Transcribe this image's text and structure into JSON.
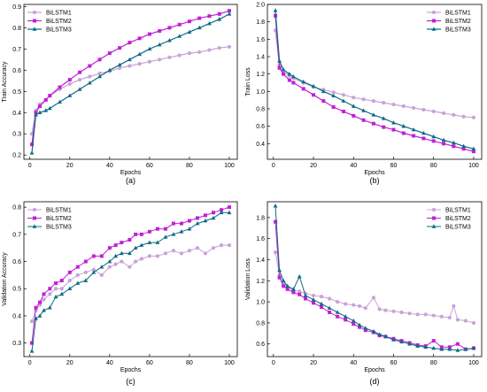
{
  "chart_data": [
    {
      "type": "line",
      "panel_label": "(a)",
      "xlabel": "Epochs",
      "ylabel": "Train Accuracy",
      "xlim": [
        -3,
        104
      ],
      "ylim": [
        0.18,
        0.91
      ],
      "xticks": [
        0,
        20,
        40,
        60,
        80,
        100
      ],
      "yticks": [
        0.2,
        0.3,
        0.4,
        0.5,
        0.6,
        0.7,
        0.8,
        0.9
      ],
      "legend_position": "top-left",
      "grid": false,
      "series": [
        {
          "name": "BiLSTM1",
          "color": "#c8a2d8",
          "marker": "circle",
          "width": 1.2,
          "x": [
            1,
            3,
            5,
            8,
            10,
            15,
            20,
            25,
            30,
            35,
            40,
            45,
            50,
            55,
            60,
            65,
            70,
            75,
            80,
            85,
            90,
            95,
            100
          ],
          "y": [
            0.3,
            0.41,
            0.44,
            0.46,
            0.48,
            0.51,
            0.535,
            0.555,
            0.57,
            0.585,
            0.595,
            0.61,
            0.62,
            0.63,
            0.64,
            0.65,
            0.66,
            0.67,
            0.68,
            0.685,
            0.695,
            0.705,
            0.71
          ]
        },
        {
          "name": "BiLSTM2",
          "color": "#c21fd6",
          "marker": "square",
          "width": 1.2,
          "x": [
            1,
            3,
            5,
            8,
            10,
            15,
            20,
            25,
            30,
            35,
            40,
            45,
            50,
            55,
            60,
            65,
            70,
            75,
            80,
            85,
            90,
            95,
            100
          ],
          "y": [
            0.25,
            0.4,
            0.43,
            0.46,
            0.48,
            0.52,
            0.555,
            0.59,
            0.62,
            0.65,
            0.68,
            0.705,
            0.73,
            0.75,
            0.77,
            0.785,
            0.8,
            0.815,
            0.83,
            0.845,
            0.855,
            0.865,
            0.88
          ]
        },
        {
          "name": "BiLSTM3",
          "color": "#0d6b84",
          "marker": "triangle",
          "width": 1.2,
          "x": [
            1,
            3,
            5,
            8,
            10,
            15,
            20,
            25,
            30,
            35,
            40,
            45,
            50,
            55,
            60,
            65,
            70,
            75,
            80,
            85,
            90,
            95,
            100
          ],
          "y": [
            0.21,
            0.39,
            0.4,
            0.41,
            0.42,
            0.45,
            0.48,
            0.51,
            0.54,
            0.57,
            0.6,
            0.625,
            0.65,
            0.675,
            0.7,
            0.72,
            0.74,
            0.76,
            0.78,
            0.8,
            0.82,
            0.84,
            0.865
          ]
        }
      ]
    },
    {
      "type": "line",
      "panel_label": "(b)",
      "xlabel": "Epochs",
      "ylabel": "Train Loss",
      "xlim": [
        -3,
        104
      ],
      "ylim": [
        0.22,
        2.0
      ],
      "xticks": [
        0,
        20,
        40,
        60,
        80,
        100
      ],
      "yticks": [
        0.4,
        0.6,
        0.8,
        1.0,
        1.2,
        1.4,
        1.6,
        1.8,
        2.0
      ],
      "legend_position": "top-right",
      "grid": false,
      "series": [
        {
          "name": "BiLSTM1",
          "color": "#c8a2d8",
          "marker": "circle",
          "width": 1.2,
          "x": [
            1,
            3,
            5,
            8,
            10,
            15,
            20,
            25,
            30,
            35,
            40,
            45,
            50,
            55,
            60,
            65,
            70,
            75,
            80,
            85,
            90,
            95,
            100
          ],
          "y": [
            1.7,
            1.3,
            1.22,
            1.18,
            1.15,
            1.1,
            1.05,
            1.02,
            0.99,
            0.96,
            0.93,
            0.91,
            0.89,
            0.87,
            0.85,
            0.83,
            0.81,
            0.79,
            0.77,
            0.75,
            0.73,
            0.71,
            0.7
          ]
        },
        {
          "name": "BiLSTM2",
          "color": "#c21fd6",
          "marker": "square",
          "width": 1.2,
          "x": [
            1,
            3,
            5,
            8,
            10,
            15,
            20,
            25,
            30,
            35,
            40,
            45,
            50,
            55,
            60,
            65,
            70,
            75,
            80,
            85,
            90,
            95,
            100
          ],
          "y": [
            1.87,
            1.27,
            1.2,
            1.13,
            1.1,
            1.03,
            0.96,
            0.89,
            0.82,
            0.77,
            0.72,
            0.67,
            0.63,
            0.59,
            0.56,
            0.52,
            0.49,
            0.46,
            0.43,
            0.4,
            0.37,
            0.34,
            0.31
          ]
        },
        {
          "name": "BiLSTM3",
          "color": "#0d6b84",
          "marker": "triangle",
          "width": 1.2,
          "x": [
            1,
            3,
            5,
            8,
            10,
            15,
            20,
            25,
            30,
            35,
            40,
            45,
            50,
            55,
            60,
            65,
            70,
            75,
            80,
            85,
            90,
            95,
            100
          ],
          "y": [
            1.93,
            1.35,
            1.25,
            1.2,
            1.17,
            1.11,
            1.06,
            1.0,
            0.95,
            0.89,
            0.83,
            0.78,
            0.73,
            0.69,
            0.64,
            0.6,
            0.56,
            0.52,
            0.48,
            0.44,
            0.41,
            0.37,
            0.34
          ]
        }
      ]
    },
    {
      "type": "line",
      "panel_label": "(c)",
      "xlabel": "Epochs",
      "ylabel": "Validation Accuracy",
      "xlim": [
        -3,
        104
      ],
      "ylim": [
        0.25,
        0.82
      ],
      "xticks": [
        0,
        20,
        40,
        60,
        80,
        100
      ],
      "yticks": [
        0.3,
        0.4,
        0.5,
        0.6,
        0.7,
        0.8
      ],
      "legend_position": "top-left",
      "grid": false,
      "series": [
        {
          "name": "BiLSTM1",
          "color": "#c8a2d8",
          "marker": "circle",
          "width": 1.0,
          "x": [
            1,
            3,
            5,
            7,
            10,
            13,
            16,
            20,
            24,
            28,
            32,
            36,
            40,
            43,
            46,
            50,
            53,
            56,
            60,
            64,
            68,
            72,
            76,
            80,
            84,
            88,
            92,
            96,
            100
          ],
          "y": [
            0.38,
            0.42,
            0.44,
            0.46,
            0.48,
            0.5,
            0.5,
            0.53,
            0.55,
            0.56,
            0.57,
            0.55,
            0.58,
            0.59,
            0.6,
            0.58,
            0.6,
            0.61,
            0.62,
            0.62,
            0.63,
            0.64,
            0.63,
            0.64,
            0.65,
            0.63,
            0.65,
            0.66,
            0.66
          ]
        },
        {
          "name": "BiLSTM2",
          "color": "#c21fd6",
          "marker": "square",
          "width": 1.0,
          "x": [
            1,
            3,
            5,
            7,
            10,
            13,
            16,
            20,
            24,
            28,
            32,
            36,
            40,
            43,
            46,
            50,
            53,
            56,
            60,
            64,
            68,
            72,
            76,
            80,
            84,
            88,
            92,
            96,
            100
          ],
          "y": [
            0.3,
            0.43,
            0.45,
            0.48,
            0.5,
            0.52,
            0.53,
            0.56,
            0.58,
            0.6,
            0.62,
            0.62,
            0.65,
            0.66,
            0.67,
            0.68,
            0.7,
            0.7,
            0.71,
            0.72,
            0.72,
            0.74,
            0.74,
            0.75,
            0.76,
            0.77,
            0.78,
            0.79,
            0.8
          ]
        },
        {
          "name": "BiLSTM3",
          "color": "#0d6b84",
          "marker": "triangle",
          "width": 1.0,
          "x": [
            1,
            3,
            5,
            7,
            10,
            13,
            16,
            20,
            24,
            28,
            32,
            36,
            40,
            43,
            46,
            50,
            53,
            56,
            60,
            64,
            68,
            72,
            76,
            80,
            84,
            88,
            92,
            96,
            100
          ],
          "y": [
            0.27,
            0.39,
            0.4,
            0.42,
            0.43,
            0.47,
            0.48,
            0.5,
            0.52,
            0.53,
            0.56,
            0.58,
            0.6,
            0.62,
            0.63,
            0.63,
            0.65,
            0.66,
            0.67,
            0.67,
            0.69,
            0.7,
            0.71,
            0.72,
            0.74,
            0.75,
            0.76,
            0.78,
            0.78
          ]
        }
      ]
    },
    {
      "type": "line",
      "panel_label": "(d)",
      "xlabel": "Epochs",
      "ylabel": "Validation Loss",
      "xlim": [
        -3,
        104
      ],
      "ylim": [
        0.48,
        1.95
      ],
      "xticks": [
        0,
        20,
        40,
        60,
        80,
        100
      ],
      "yticks": [
        0.6,
        0.8,
        1.0,
        1.2,
        1.4,
        1.6,
        1.8
      ],
      "legend_position": "top-right",
      "grid": false,
      "series": [
        {
          "name": "BiLSTM1",
          "color": "#c8a2d8",
          "marker": "circle",
          "width": 1.0,
          "x": [
            1,
            3,
            5,
            7,
            10,
            13,
            16,
            20,
            24,
            28,
            32,
            36,
            40,
            43,
            46,
            50,
            53,
            56,
            60,
            64,
            68,
            72,
            76,
            80,
            84,
            88,
            90,
            92,
            96,
            100
          ],
          "y": [
            1.47,
            1.25,
            1.18,
            1.14,
            1.11,
            1.1,
            1.08,
            1.06,
            1.05,
            1.03,
            1.0,
            0.98,
            0.97,
            0.96,
            0.94,
            1.04,
            0.93,
            0.92,
            0.91,
            0.9,
            0.89,
            0.88,
            0.88,
            0.87,
            0.86,
            0.85,
            0.96,
            0.83,
            0.82,
            0.8
          ]
        },
        {
          "name": "BiLSTM2",
          "color": "#c21fd6",
          "marker": "square",
          "width": 1.0,
          "x": [
            1,
            3,
            5,
            7,
            10,
            13,
            16,
            20,
            24,
            28,
            32,
            36,
            40,
            43,
            46,
            50,
            53,
            56,
            60,
            64,
            68,
            72,
            76,
            80,
            84,
            88,
            92,
            96,
            100
          ],
          "y": [
            1.76,
            1.23,
            1.15,
            1.12,
            1.09,
            1.07,
            1.03,
            0.99,
            0.95,
            0.9,
            0.86,
            0.83,
            0.79,
            0.76,
            0.73,
            0.71,
            0.68,
            0.67,
            0.65,
            0.63,
            0.61,
            0.59,
            0.58,
            0.63,
            0.57,
            0.57,
            0.6,
            0.55,
            0.56
          ]
        },
        {
          "name": "BiLSTM3",
          "color": "#0d6b84",
          "marker": "triangle",
          "width": 1.0,
          "x": [
            1,
            3,
            5,
            7,
            10,
            13,
            16,
            20,
            24,
            28,
            32,
            36,
            40,
            43,
            46,
            50,
            53,
            56,
            60,
            64,
            68,
            72,
            76,
            80,
            84,
            88,
            92,
            96,
            100
          ],
          "y": [
            1.91,
            1.3,
            1.2,
            1.15,
            1.12,
            1.24,
            1.06,
            1.02,
            0.98,
            0.94,
            0.9,
            0.86,
            0.82,
            0.78,
            0.75,
            0.72,
            0.69,
            0.67,
            0.64,
            0.62,
            0.6,
            0.58,
            0.57,
            0.56,
            0.55,
            0.55,
            0.54,
            0.55,
            0.56
          ]
        }
      ]
    }
  ]
}
